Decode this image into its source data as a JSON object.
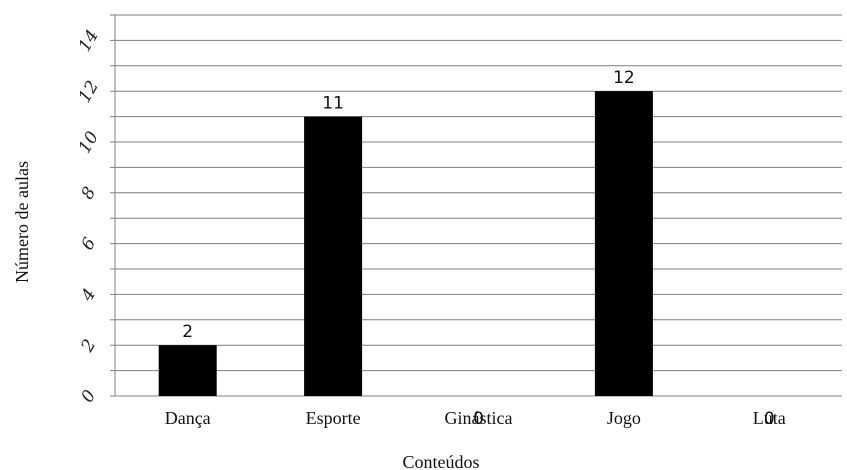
{
  "chart_data": {
    "type": "bar",
    "categories": [
      "Dança",
      "Esporte",
      "Ginástica",
      "Jogo",
      "Luta"
    ],
    "values": [
      2,
      11,
      0,
      12,
      0
    ],
    "data_labels": [
      "2",
      "11",
      "0",
      "12",
      "0"
    ],
    "xlabel": "Conteúdos",
    "ylabel": "Número de aulas",
    "ylim": [
      0,
      15
    ],
    "yticks": [
      0,
      2,
      4,
      6,
      8,
      10,
      12,
      14
    ],
    "grid": true,
    "bar_color": "#000000",
    "grid_color": "#7f7f7f"
  }
}
